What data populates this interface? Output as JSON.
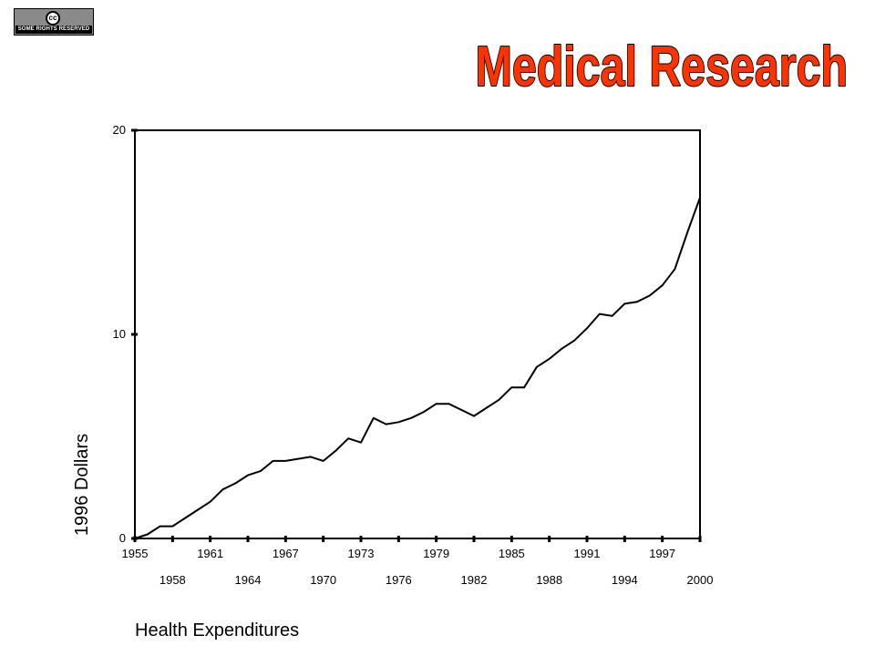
{
  "slide": {
    "title": "Medical Research",
    "title_color": "#FF3300",
    "badge": {
      "symbol": "cc",
      "text": "SOME RIGHTS RESERVED"
    }
  },
  "chart_data": {
    "type": "line",
    "title": "",
    "xlabel": "Health Expenditures",
    "ylabel": "1996 Dollars",
    "xlim": [
      1955,
      2000
    ],
    "ylim": [
      0,
      20
    ],
    "y_ticks": [
      0,
      10,
      20
    ],
    "x_ticks_upper": [
      1955,
      1961,
      1967,
      1973,
      1979,
      1985,
      1991,
      1997
    ],
    "x_ticks_lower": [
      1958,
      1964,
      1970,
      1976,
      1982,
      1988,
      1994,
      2000
    ],
    "grid": false,
    "line_color": "#000000",
    "series": [
      {
        "x": [
          1955,
          1956,
          1957,
          1958,
          1959,
          1960,
          1961,
          1962,
          1963,
          1964,
          1965,
          1966,
          1967,
          1968,
          1969,
          1970,
          1971,
          1972,
          1973,
          1974,
          1975,
          1976,
          1977,
          1978,
          1979,
          1980,
          1981,
          1982,
          1983,
          1984,
          1985,
          1986,
          1987,
          1988,
          1989,
          1990,
          1991,
          1992,
          1993,
          1994,
          1995,
          1996,
          1997,
          1998,
          1999,
          2000
        ],
        "values": [
          0.0,
          0.2,
          0.6,
          0.6,
          1.0,
          1.4,
          1.8,
          2.4,
          2.7,
          3.1,
          3.3,
          3.8,
          3.8,
          3.9,
          4.0,
          3.8,
          4.3,
          4.9,
          4.7,
          5.9,
          5.6,
          5.7,
          5.9,
          6.2,
          6.6,
          6.6,
          6.3,
          6.0,
          6.4,
          6.8,
          7.4,
          7.4,
          8.4,
          8.8,
          9.3,
          9.7,
          10.3,
          11.0,
          10.9,
          11.5,
          11.6,
          11.9,
          12.4,
          13.2,
          15.0,
          16.7
        ]
      }
    ]
  }
}
